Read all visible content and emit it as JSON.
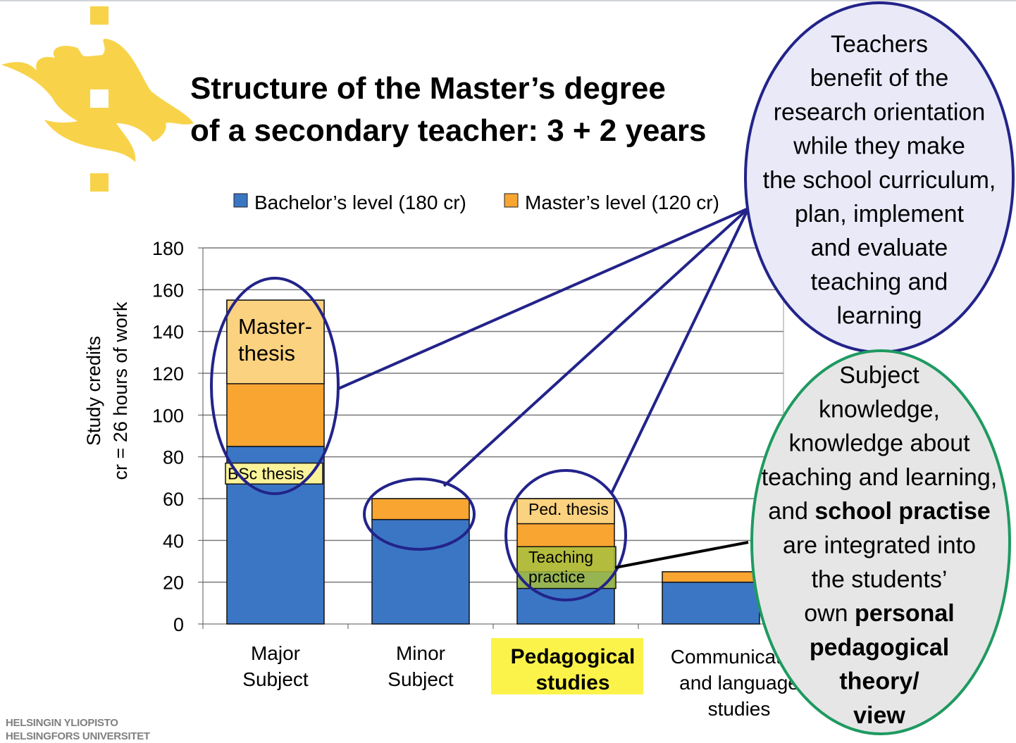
{
  "title_lines": [
    "Structure of the Master’s degree",
    "of a secondary teacher: 3 + 2 years"
  ],
  "footer_lines": [
    "HELSINGIN YLIOPISTO",
    "HELSINGFORS UNIVERSITET"
  ],
  "logo_color": "#f8d34a",
  "chart_data": {
    "type": "bar",
    "stacked": true,
    "categories": [
      [
        "Major",
        "Subject"
      ],
      [
        "Minor",
        "Subject"
      ],
      [
        "Pedagogical",
        "studies"
      ],
      [
        "Communication",
        "and language",
        "studies"
      ]
    ],
    "series": [
      {
        "name": "Bachelor’s level (180 cr)",
        "color": "#3b76c4",
        "values": [
          85,
          50,
          25,
          20
        ]
      },
      {
        "name": "Master’s level  (120 cr)",
        "color": "#f8a531",
        "values": [
          70,
          10,
          35,
          5
        ]
      }
    ],
    "ylabel_lines": [
      "Study credits",
      "cr = 26 hours of work"
    ],
    "ylim": [
      0,
      180
    ],
    "yticks": [
      0,
      20,
      40,
      60,
      80,
      100,
      120,
      140,
      160,
      180
    ],
    "grid": true,
    "legend_position": "top",
    "highlighted_category": 2,
    "highlight_color": "#fbf34a",
    "annotations": [
      {
        "text_lines": [
          "Master-",
          "thesis"
        ],
        "category": 0,
        "range": [
          115,
          155
        ],
        "color": "#fbd27f"
      },
      {
        "text_lines": [
          "BSc thesis"
        ],
        "category": 0,
        "range": [
          67,
          77
        ],
        "color": "#fbf39a"
      },
      {
        "text_lines": [
          "Ped. thesis"
        ],
        "category": 2,
        "range": [
          48,
          60
        ],
        "color": "#fbd27f"
      },
      {
        "text_lines": [
          "Teaching",
          "practice"
        ],
        "category": 2,
        "range": [
          17,
          37
        ],
        "color": "#a8c040"
      }
    ]
  },
  "callouts": {
    "research": {
      "lines": [
        "Teachers",
        "benefit of the",
        "research orientation",
        "while they make",
        "the school curriculum,",
        "plan, implement",
        "and evaluate",
        "teaching and",
        "learning"
      ],
      "fill": "#e9e9f8",
      "stroke": "#23238a"
    },
    "integration": {
      "lines": [
        [
          {
            "t": "Subject",
            "b": false
          }
        ],
        [
          {
            "t": "knowledge,",
            "b": false
          }
        ],
        [
          {
            "t": "knowledge about",
            "b": false
          }
        ],
        [
          {
            "t": "teaching and learning,",
            "b": false
          }
        ],
        [
          {
            "t": "and ",
            "b": false
          },
          {
            "t": "school practise",
            "b": true
          }
        ],
        [
          {
            "t": "are integrated into",
            "b": false
          }
        ],
        [
          {
            "t": "the students’",
            "b": false
          }
        ],
        [
          {
            "t": "own ",
            "b": false
          },
          {
            "t": "personal",
            "b": true
          }
        ],
        [
          {
            "t": "pedagogical",
            "b": true
          }
        ],
        [
          {
            "t": "theory/",
            "b": true
          }
        ],
        [
          {
            "t": "view",
            "b": true
          }
        ]
      ],
      "fill": "#e6e6e6",
      "stroke": "#1e9a60"
    }
  }
}
